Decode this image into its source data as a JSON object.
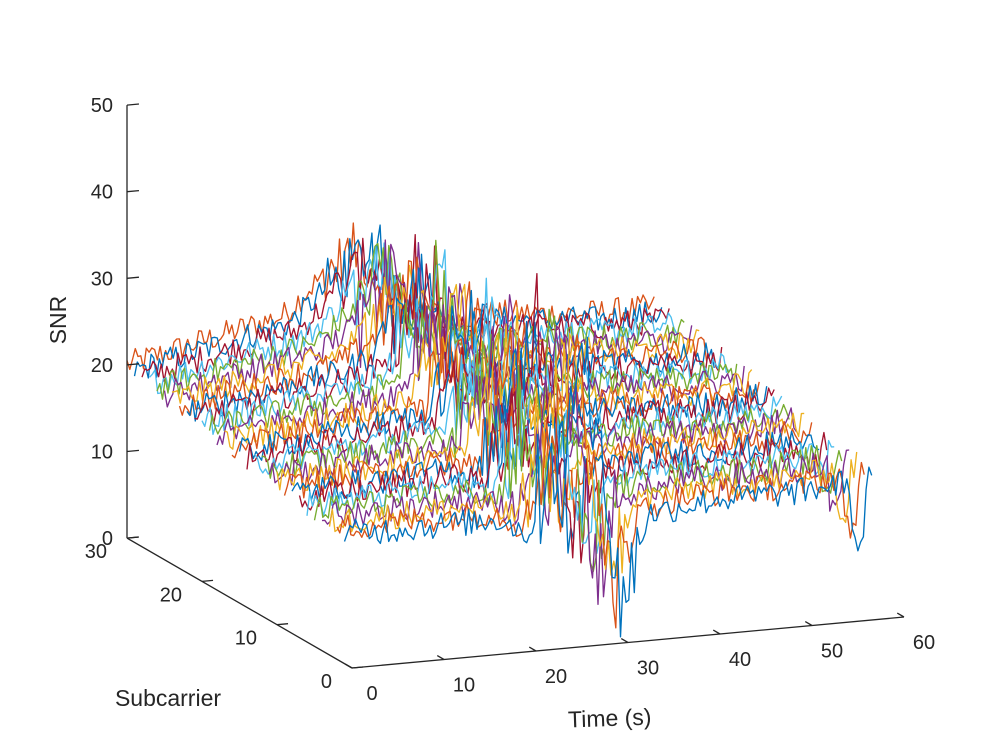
{
  "chart_data": {
    "type": "line",
    "view": "3d",
    "xlabel": "Time (s)",
    "ylabel": "Subcarrier",
    "zlabel": "SNR",
    "xlim": [
      0,
      60
    ],
    "ylim": [
      0,
      30
    ],
    "zlim": [
      0,
      50
    ],
    "x_ticks": [
      "0",
      "10",
      "20",
      "30",
      "40",
      "50",
      "60"
    ],
    "y_ticks": [
      "0",
      "10",
      "20",
      "30"
    ],
    "z_ticks": [
      "0",
      "10",
      "20",
      "30",
      "40",
      "50"
    ],
    "grid": false,
    "legend": "none",
    "subcarriers": [
      1,
      30
    ],
    "time_range": [
      0,
      57.5
    ],
    "snr_profile_subcarrier_1": {
      "time": [
        0,
        17,
        20,
        23,
        26,
        28,
        30,
        33,
        40,
        50,
        57.5
      ],
      "snr": [
        15,
        15,
        13,
        20,
        32,
        20,
        4,
        14,
        15,
        15,
        16
      ]
    },
    "snr_profile_subcarrier_30": {
      "time": [
        0,
        17,
        21,
        25,
        28,
        31,
        35,
        40,
        50,
        57.5
      ],
      "snr": [
        20,
        24,
        28,
        31,
        26,
        24,
        22,
        22,
        21,
        21
      ]
    },
    "series_colors": [
      "#0072BD",
      "#D95319",
      "#EDB120",
      "#7E2F8E",
      "#77AC30",
      "#4DBEEE",
      "#A2142F"
    ]
  }
}
